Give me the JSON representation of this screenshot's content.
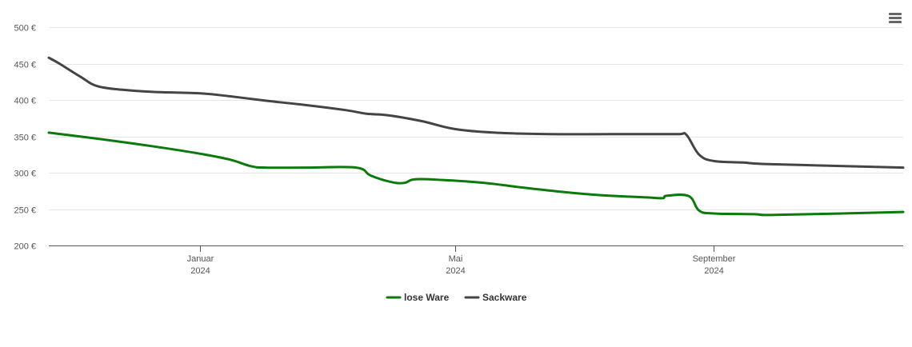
{
  "chart_data": {
    "type": "line",
    "title": "",
    "xlabel": "",
    "ylabel": "",
    "currency": "€",
    "ylim": [
      200,
      500
    ],
    "y_ticks": [
      200,
      250,
      300,
      350,
      400,
      450,
      500
    ],
    "y_tick_labels": [
      "200 €",
      "250 €",
      "300 €",
      "350 €",
      "400 €",
      "450 €",
      "500 €"
    ],
    "xlim": [
      "2023-10-21",
      "2024-11-30"
    ],
    "x_ticks": [
      {
        "date": "2024-01-01",
        "month": "Januar",
        "year": "2024"
      },
      {
        "date": "2024-05-01",
        "month": "Mai",
        "year": "2024"
      },
      {
        "date": "2024-09-01",
        "month": "September",
        "year": "2024"
      }
    ],
    "grid": true,
    "legend_position": "bottom-center",
    "series": [
      {
        "name": "lose Ware",
        "color": "#0a7a0a",
        "points": [
          [
            "2023-10-21",
            355
          ],
          [
            "2023-11-15",
            346
          ],
          [
            "2023-12-10",
            336
          ],
          [
            "2024-01-01",
            326
          ],
          [
            "2024-01-15",
            318
          ],
          [
            "2024-01-25",
            309
          ],
          [
            "2024-02-01",
            307
          ],
          [
            "2024-02-20",
            307
          ],
          [
            "2024-03-15",
            307
          ],
          [
            "2024-03-22",
            296
          ],
          [
            "2024-04-01",
            287
          ],
          [
            "2024-04-07",
            286
          ],
          [
            "2024-04-12",
            291
          ],
          [
            "2024-04-25",
            290
          ],
          [
            "2024-05-15",
            286
          ],
          [
            "2024-06-01",
            280
          ],
          [
            "2024-06-20",
            274
          ],
          [
            "2024-07-10",
            269
          ],
          [
            "2024-07-31",
            266
          ],
          [
            "2024-08-08",
            265
          ],
          [
            "2024-08-09",
            268
          ],
          [
            "2024-08-20",
            268
          ],
          [
            "2024-08-25",
            248
          ],
          [
            "2024-09-01",
            244
          ],
          [
            "2024-09-20",
            243
          ],
          [
            "2024-09-30",
            242
          ],
          [
            "2024-11-30",
            246
          ]
        ]
      },
      {
        "name": "Sackware",
        "color": "#444444",
        "points": [
          [
            "2023-10-21",
            458
          ],
          [
            "2023-10-26",
            450
          ],
          [
            "2023-11-05",
            432
          ],
          [
            "2023-11-13",
            419
          ],
          [
            "2023-11-25",
            414
          ],
          [
            "2023-12-10",
            411
          ],
          [
            "2024-01-01",
            409
          ],
          [
            "2024-01-15",
            405
          ],
          [
            "2024-02-01",
            399
          ],
          [
            "2024-02-20",
            393
          ],
          [
            "2024-03-10",
            386
          ],
          [
            "2024-03-20",
            381
          ],
          [
            "2024-03-30",
            379
          ],
          [
            "2024-04-15",
            371
          ],
          [
            "2024-05-01",
            360
          ],
          [
            "2024-05-20",
            355
          ],
          [
            "2024-06-15",
            353
          ],
          [
            "2024-07-15",
            353
          ],
          [
            "2024-08-15",
            353
          ],
          [
            "2024-08-19",
            352
          ],
          [
            "2024-08-25",
            325
          ],
          [
            "2024-09-01",
            316
          ],
          [
            "2024-09-15",
            314
          ],
          [
            "2024-09-25",
            312
          ],
          [
            "2024-11-30",
            307
          ]
        ]
      }
    ]
  },
  "toolbar": {
    "menu_icon": "hamburger-menu-icon"
  }
}
